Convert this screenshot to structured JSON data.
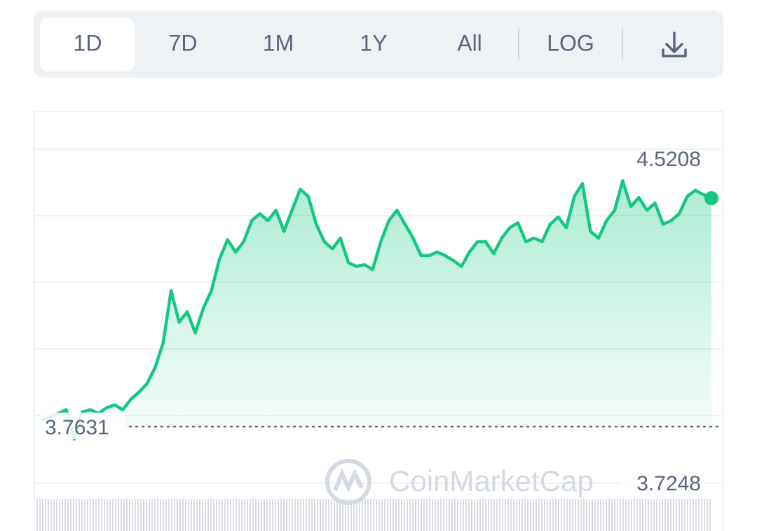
{
  "toolbar": {
    "tabs": [
      "1D",
      "7D",
      "1M",
      "1Y",
      "All"
    ],
    "log": "LOG",
    "active_tab": 0
  },
  "chart_data": {
    "type": "line",
    "color": "#16c784",
    "values": [
      3.782,
      3.793,
      3.804,
      3.815,
      3.7248,
      3.808,
      3.815,
      3.804,
      3.821,
      3.83,
      3.815,
      3.847,
      3.869,
      3.895,
      3.944,
      4.02,
      4.182,
      4.085,
      4.117,
      4.052,
      4.128,
      4.182,
      4.279,
      4.339,
      4.301,
      4.333,
      4.398,
      4.419,
      4.398,
      4.43,
      4.365,
      4.43,
      4.495,
      4.473,
      4.387,
      4.333,
      4.311,
      4.344,
      4.268,
      4.257,
      4.262,
      4.247,
      4.333,
      4.398,
      4.43,
      4.387,
      4.344,
      4.29,
      4.29,
      4.301,
      4.29,
      4.275,
      4.257,
      4.301,
      4.333,
      4.333,
      4.296,
      4.344,
      4.376,
      4.391,
      4.333,
      4.344,
      4.333,
      4.387,
      4.409,
      4.376,
      4.473,
      4.512,
      4.365,
      4.344,
      4.398,
      4.43,
      4.5208,
      4.441,
      4.469,
      4.43,
      4.452,
      4.387,
      4.398,
      4.419,
      4.473,
      4.491,
      4.478,
      4.467
    ],
    "ylim": [
      3.4414,
      4.7216
    ],
    "reference_line": 3.7631,
    "high": 4.5208,
    "low": 3.7248
  },
  "watermark": "CoinMarketCap"
}
